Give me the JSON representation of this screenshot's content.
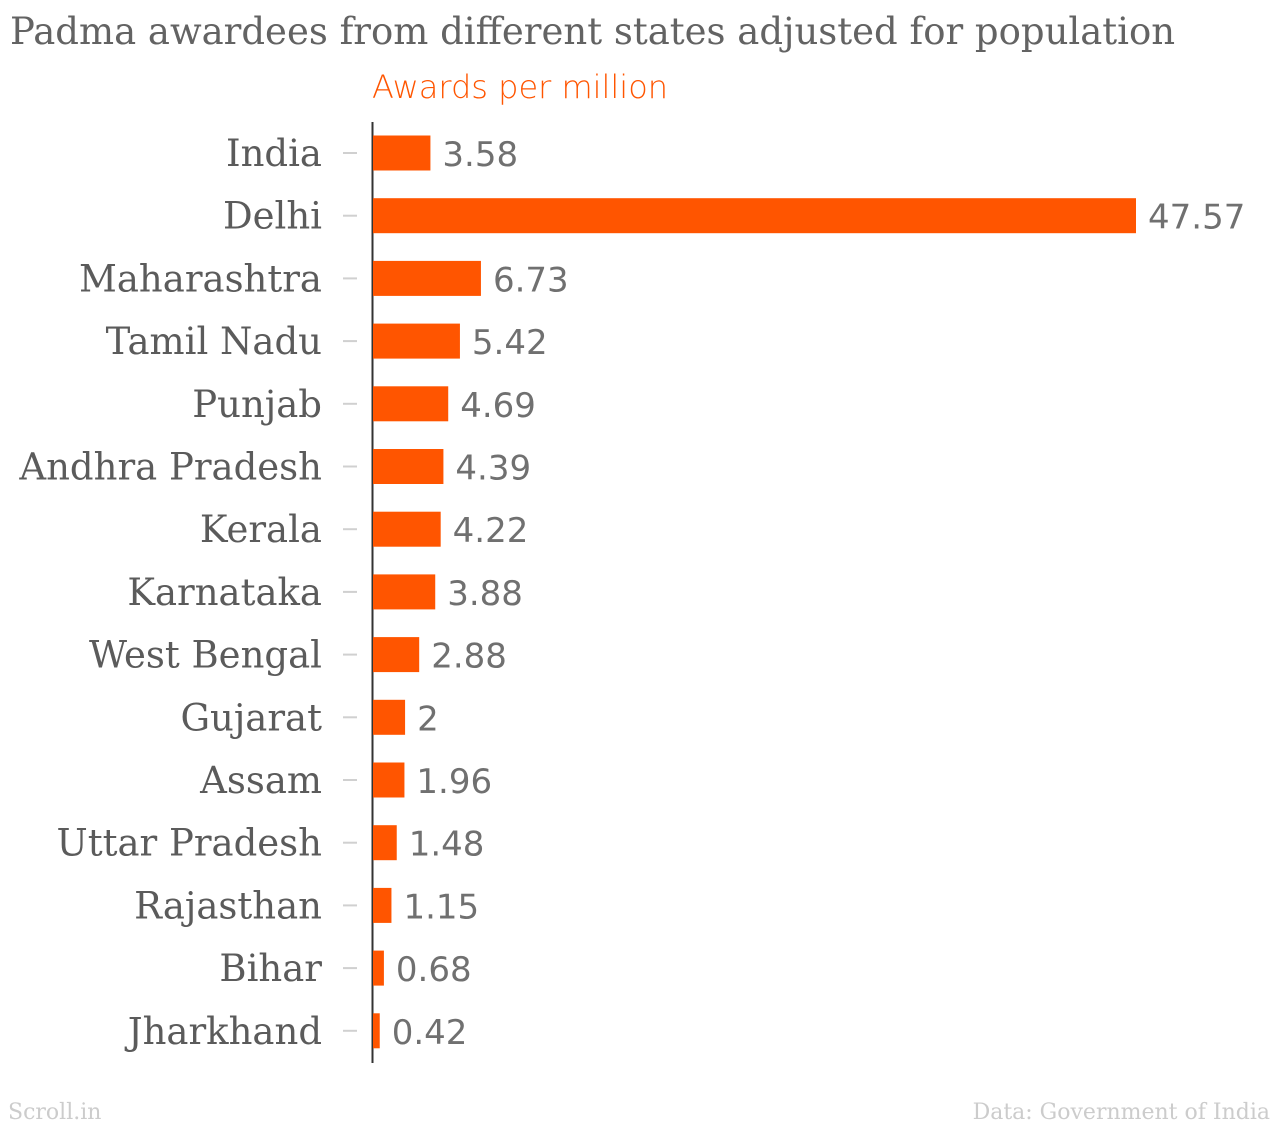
{
  "chart_data": {
    "type": "bar",
    "orientation": "horizontal",
    "title": "Padma awardees from different states adjusted for population",
    "subtitle": "Awards per million",
    "categories": [
      "India",
      "Delhi",
      "Maharashtra",
      "Tamil Nadu",
      "Punjab",
      "Andhra Pradesh",
      "Kerala",
      "Karnataka",
      "West Bengal",
      "Gujarat",
      "Assam",
      "Uttar Pradesh",
      "Rajasthan",
      "Bihar",
      "Jharkhand"
    ],
    "values": [
      3.58,
      47.57,
      6.73,
      5.42,
      4.69,
      4.39,
      4.22,
      3.88,
      2.88,
      2,
      1.96,
      1.48,
      1.15,
      0.68,
      0.42
    ],
    "value_labels": [
      "3.58",
      "47.57",
      "6.73",
      "5.42",
      "4.69",
      "4.39",
      "4.22",
      "3.88",
      "2.88",
      "2",
      "1.96",
      "1.48",
      "1.15",
      "0.68",
      "0.42"
    ],
    "xlim": [
      0,
      47.57
    ],
    "grid": false,
    "colors": {
      "bar": "#ff5500",
      "subtitle": "#ff5500",
      "title": "#636363",
      "footer": "#cccccc"
    }
  },
  "footer": {
    "source_left": "Scroll.in",
    "source_right": "Data: Government of India"
  }
}
